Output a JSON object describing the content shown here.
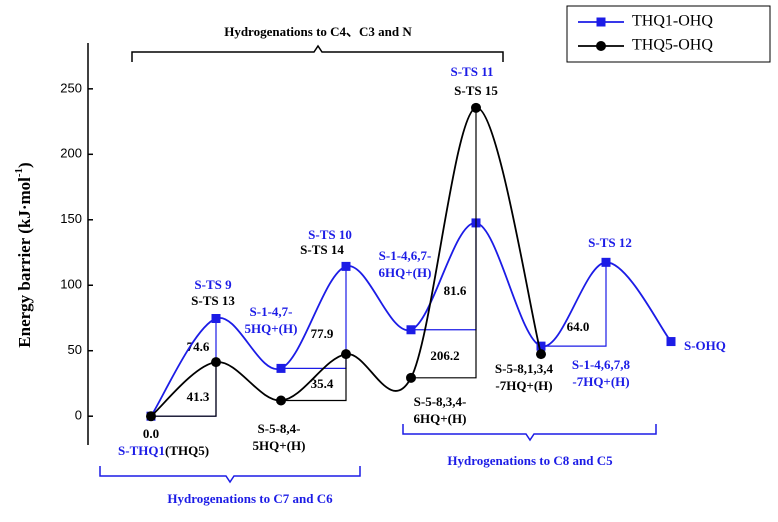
{
  "chart_data": {
    "type": "line",
    "ylabel": [
      "Energy barrier (kJ·mol",
      "-1",
      ")"
    ],
    "categories": [
      null,
      null,
      null,
      null,
      null,
      null,
      null,
      null,
      null
    ],
    "ylim": [
      -22,
      285
    ],
    "yticks": [
      0,
      50,
      100,
      150,
      200,
      250
    ],
    "legend": "top-right",
    "brackets": [
      "Hydrogenations to C4、C3 and N",
      "Hydrogenations to C7 and C6",
      "Hydrogenations to C8 and C5"
    ],
    "series": [
      {
        "name": "THQ1-OHQ",
        "color": "#1c1ce6",
        "marker": "square",
        "values": [
          0,
          74.6,
          36.5,
          114.4,
          66.0,
          147.6,
          53.5,
          117.5,
          57
        ],
        "point_labels": [
          [
            "S-THQ1"
          ],
          [
            "S-TS 9"
          ],
          [
            "S-1-4,7-",
            "5HQ+(H)"
          ],
          [
            "S-TS 10"
          ],
          [
            "S-1-4,6,7-",
            "6HQ+(H)"
          ],
          [
            "S-TS 11"
          ],
          [
            "S-1-4,6,7,8",
            "-7HQ+(H)"
          ],
          [
            "S-TS 12"
          ],
          [
            "S-OHQ"
          ]
        ],
        "barrier_labels": [
          null,
          "74.6",
          null,
          "77.9",
          null,
          "81.6",
          null,
          "64.0",
          null
        ]
      },
      {
        "name": "THQ5-OHQ",
        "color": "#000000",
        "marker": "circle",
        "values": [
          0,
          41.3,
          12.0,
          47.4,
          29.3,
          235.5,
          47.4,
          null,
          null
        ],
        "value_labels": [
          "0.0",
          null,
          null,
          null,
          null,
          null,
          null,
          null,
          null
        ],
        "point_labels": [
          [
            "(THQ5)"
          ],
          [
            "S-TS 13"
          ],
          [
            "S-5-8,4-",
            "5HQ+(H)"
          ],
          [
            "S-TS 14"
          ],
          [
            "S-5-8,3,4-",
            "6HQ+(H)"
          ],
          [
            "S-TS 15"
          ],
          [
            "S-5-8,1,3,4",
            "-7HQ+(H)"
          ],
          null,
          null
        ],
        "barrier_labels": [
          null,
          "41.3",
          null,
          "35.4",
          null,
          "206.2",
          null,
          null,
          null
        ]
      }
    ]
  }
}
